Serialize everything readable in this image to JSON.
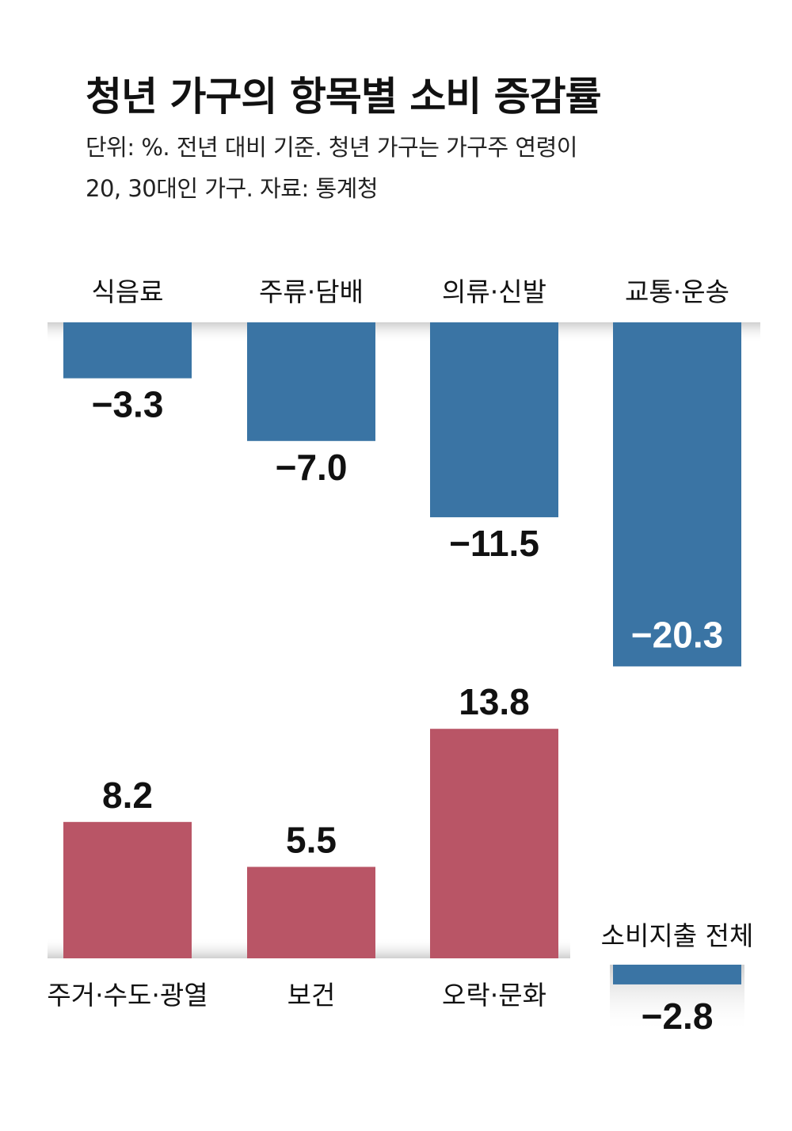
{
  "header": {
    "title": "청년 가구의 항목별 소비 증감률",
    "subtitle_line1": "단위: %. 전년 대비 기준. 청년 가구는 가구주 연령이",
    "subtitle_line2": "20, 30대인 가구. 자료: 통계청"
  },
  "colors": {
    "negative": "#3a74a4",
    "positive": "#b95566",
    "shadow": "#d8d8d8"
  },
  "chart_data": {
    "type": "bar",
    "unit": "%",
    "negative_series": {
      "categories": [
        "식음료",
        "주류·담배",
        "의류·신발",
        "교통·운송"
      ],
      "values": [
        -3.3,
        -7.0,
        -11.5,
        -20.3
      ],
      "labels": [
        "−3.3",
        "−7.0",
        "−11.5",
        "−20.3"
      ]
    },
    "positive_series": {
      "categories": [
        "주거·수도·광열",
        "보건",
        "오락·문화"
      ],
      "values": [
        8.2,
        5.5,
        13.8
      ],
      "labels": [
        "8.2",
        "5.5",
        "13.8"
      ]
    },
    "total": {
      "label": "소비지출 전체",
      "value": -2.8,
      "value_label": "−2.8"
    }
  }
}
